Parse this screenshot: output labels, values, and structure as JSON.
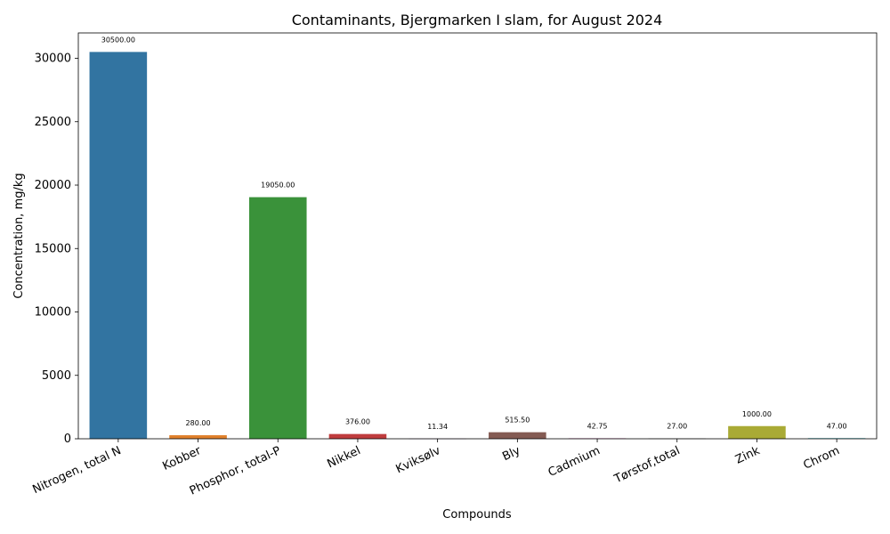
{
  "chart_data": {
    "type": "bar",
    "title": "Contaminants, Bjergmarken I slam, for August 2024",
    "xlabel": "Compounds",
    "ylabel": "Concentration, mg/kg",
    "ylim": [
      0,
      32000
    ],
    "yticks": [
      0,
      5000,
      10000,
      15000,
      20000,
      25000,
      30000
    ],
    "grid": false,
    "categories": [
      "Nitrogen, total N",
      "Kobber",
      "Phosphor, total-P",
      "Nikkel",
      "Kviksølv",
      "Bly",
      "Cadmium",
      "Tørstof,total",
      "Zink",
      "Chrom"
    ],
    "values": [
      30500.0,
      280.0,
      19050.0,
      376.0,
      11.34,
      515.5,
      42.75,
      27.0,
      1000.0,
      47.0
    ],
    "data_labels": [
      "30500.00",
      "280.00",
      "19050.00",
      "376.00",
      "11.34",
      "515.50",
      "42.75",
      "27.00",
      "1000.00",
      "47.00"
    ],
    "colors": [
      "#3274a1",
      "#e1812c",
      "#3a923a",
      "#c03d3e",
      "#9372b2",
      "#845b53",
      "#d684bd",
      "#7f7f7f",
      "#a9aa35",
      "#2eaab8"
    ]
  }
}
